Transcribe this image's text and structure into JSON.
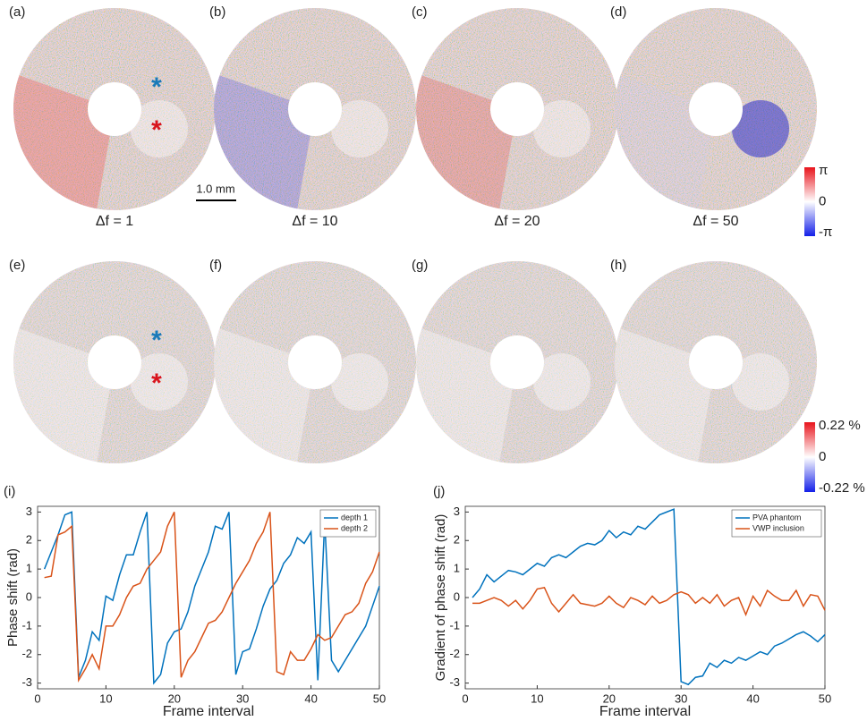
{
  "panels": [
    {
      "label": "(a)",
      "caption": "Δf = 1"
    },
    {
      "label": "(b)",
      "caption": "Δf = 10"
    },
    {
      "label": "(c)",
      "caption": "Δf = 20"
    },
    {
      "label": "(d)",
      "caption": "Δf = 50"
    },
    {
      "label": "(e)"
    },
    {
      "label": "(f)"
    },
    {
      "label": "(g)"
    },
    {
      "label": "(h)"
    }
  ],
  "scale_bar": "1.0 mm",
  "asterisk": "*",
  "colorbars": [
    {
      "labels": [
        "π",
        "0",
        "-π"
      ]
    },
    {
      "labels": [
        "0.22 %",
        "0",
        "-0.22 %"
      ]
    }
  ],
  "chart_data": [
    {
      "type": "line",
      "panel_label": "(i)",
      "xlabel": "Frame interval",
      "ylabel": "Phase shift (rad)",
      "legend": "upper right",
      "x": [
        1,
        2,
        3,
        4,
        5,
        6,
        7,
        8,
        9,
        10,
        11,
        12,
        13,
        14,
        15,
        16,
        17,
        18,
        19,
        20,
        21,
        22,
        23,
        24,
        25,
        26,
        27,
        28,
        29,
        30,
        31,
        32,
        33,
        34,
        35,
        36,
        37,
        38,
        39,
        40,
        41,
        42,
        43,
        44,
        45,
        46,
        47,
        48,
        49,
        50
      ],
      "series": [
        {
          "name": "depth 1",
          "color": "#0072bd",
          "values": [
            1.0,
            1.6,
            2.2,
            2.9,
            3.0,
            -2.8,
            -2.2,
            -1.2,
            -1.5,
            0.05,
            -0.1,
            0.8,
            1.5,
            1.5,
            2.3,
            3.0,
            -3.0,
            -2.7,
            -1.6,
            -1.2,
            -1.1,
            -0.5,
            0.4,
            1.0,
            1.6,
            2.5,
            2.4,
            3.0,
            -2.7,
            -1.9,
            -1.8,
            -1.1,
            -0.3,
            0.3,
            0.6,
            1.2,
            1.5,
            2.1,
            1.9,
            2.3,
            -2.9,
            2.7,
            -2.2,
            -2.6,
            -2.2,
            -1.8,
            -1.4,
            -1.0,
            -0.3,
            0.4
          ]
        },
        {
          "name": "depth 2",
          "color": "#d95319",
          "values": [
            0.7,
            0.75,
            2.2,
            2.3,
            2.5,
            -2.9,
            -2.5,
            -2.0,
            -2.5,
            -1.0,
            -1.0,
            -0.6,
            0.0,
            0.4,
            0.5,
            1.0,
            1.3,
            1.6,
            2.5,
            3.0,
            -2.8,
            -2.2,
            -1.9,
            -1.4,
            -0.9,
            -0.8,
            -0.5,
            0.0,
            0.5,
            0.9,
            1.3,
            1.9,
            2.3,
            3.0,
            -2.6,
            -2.7,
            -1.9,
            -2.2,
            -2.2,
            -1.8,
            -1.3,
            -1.5,
            -1.4,
            -1.0,
            -0.6,
            -0.5,
            -0.2,
            0.5,
            0.9,
            1.6
          ]
        }
      ],
      "xlim": [
        0,
        50
      ],
      "xticks": [
        0,
        10,
        20,
        30,
        40,
        50
      ],
      "ylim": [
        -3.2,
        3.2
      ],
      "yticks": [
        -3,
        -2,
        -1,
        0,
        1,
        2,
        3
      ]
    },
    {
      "type": "line",
      "panel_label": "(j)",
      "xlabel": "Frame interval",
      "ylabel": "Gradient of phase shift (rad)",
      "legend": "upper right",
      "x": [
        1,
        2,
        3,
        4,
        5,
        6,
        7,
        8,
        9,
        10,
        11,
        12,
        13,
        14,
        15,
        16,
        17,
        18,
        19,
        20,
        21,
        22,
        23,
        24,
        25,
        26,
        27,
        28,
        29,
        30,
        31,
        32,
        33,
        34,
        35,
        36,
        37,
        38,
        39,
        40,
        41,
        42,
        43,
        44,
        45,
        46,
        47,
        48,
        49,
        50
      ],
      "series": [
        {
          "name": "PVA phantom",
          "color": "#0072bd",
          "values": [
            0.0,
            0.3,
            0.8,
            0.55,
            0.75,
            0.95,
            0.9,
            0.8,
            1.0,
            1.2,
            1.1,
            1.4,
            1.5,
            1.4,
            1.6,
            1.8,
            1.9,
            1.85,
            2.0,
            2.35,
            2.1,
            2.3,
            2.2,
            2.5,
            2.4,
            2.65,
            2.9,
            3.0,
            3.1,
            -2.95,
            -3.05,
            -2.8,
            -2.75,
            -2.3,
            -2.45,
            -2.2,
            -2.3,
            -2.1,
            -2.2,
            -2.05,
            -1.9,
            -2.0,
            -1.7,
            -1.6,
            -1.45,
            -1.3,
            -1.2,
            -1.35,
            -1.55,
            -1.3
          ]
        },
        {
          "name": "VWP inclusion",
          "color": "#d95319",
          "values": [
            -0.2,
            -0.2,
            -0.1,
            0.0,
            -0.1,
            -0.3,
            -0.1,
            -0.4,
            -0.1,
            0.3,
            0.35,
            -0.2,
            -0.5,
            -0.2,
            0.1,
            -0.2,
            -0.25,
            -0.3,
            -0.2,
            0.05,
            -0.2,
            -0.35,
            0.0,
            -0.1,
            -0.25,
            0.05,
            -0.2,
            -0.1,
            0.1,
            0.2,
            0.1,
            -0.2,
            0.0,
            -0.2,
            0.1,
            -0.3,
            -0.1,
            0.0,
            -0.6,
            0.05,
            -0.3,
            0.25,
            0.05,
            -0.1,
            -0.1,
            0.25,
            -0.3,
            0.1,
            0.05,
            -0.45
          ]
        }
      ],
      "xlim": [
        0,
        50
      ],
      "xticks": [
        0,
        10,
        20,
        30,
        40,
        50
      ],
      "ylim": [
        -3.2,
        3.2
      ],
      "yticks": [
        -3,
        -2,
        -1,
        0,
        1,
        2,
        3
      ]
    }
  ]
}
